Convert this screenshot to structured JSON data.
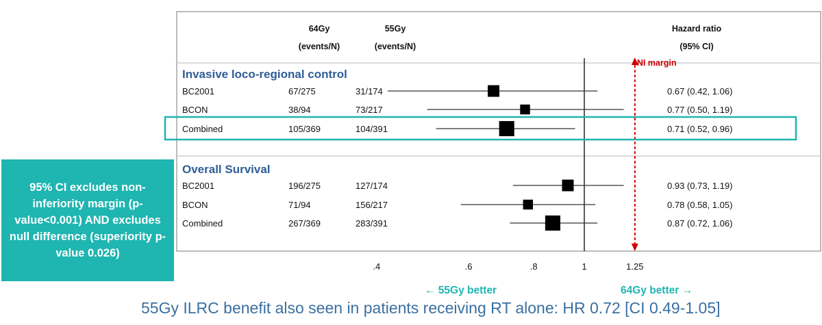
{
  "header": {
    "col1": [
      "64Gy",
      "(events/N)"
    ],
    "col2": [
      "55Gy",
      "(events/N)"
    ],
    "hr": [
      "Hazard ratio",
      "(95% CI)"
    ]
  },
  "ni_margin_label": "NI margin",
  "favour": {
    "left": "← 55Gy better",
    "right": "64Gy better →"
  },
  "callout": "95% CI excludes non-inferiority margin (p-value<0.001) AND excludes null difference (superiority p-value 0.026)",
  "caption": "55Gy ILRC benefit also seen in patients receiving RT alone: HR 0.72 [CI 0.49-1.05]",
  "colors": {
    "title": "#2e5d97",
    "highlight": "#1fb5b0",
    "ni": "#cc0000",
    "marker": "#000000"
  },
  "chart_data": {
    "type": "forest",
    "x_scale": "log",
    "xlim": [
      0.36,
      1.4
    ],
    "x_ticks": [
      0.4,
      0.6,
      0.8,
      1,
      1.25
    ],
    "x_tick_labels": [
      ".4",
      ".6",
      ".8",
      "1",
      "1.25"
    ],
    "null_line": 1,
    "ni_margin": 1.25,
    "groups": [
      {
        "title": "Invasive loco-regional control",
        "rows": [
          {
            "label": "BC2001",
            "a": "67/275",
            "b": "31/174",
            "hr": 0.67,
            "lo": 0.42,
            "hi": 1.06,
            "text": "0.67 (0.42, 1.06)",
            "size": 1
          },
          {
            "label": "BCON",
            "a": "38/94",
            "b": "73/217",
            "hr": 0.77,
            "lo": 0.5,
            "hi": 1.19,
            "text": "0.77 (0.50, 1.19)",
            "size": 0.85,
            "highlight": false
          },
          {
            "label": "Combined",
            "a": "105/369",
            "b": "104/391",
            "hr": 0.71,
            "lo": 0.52,
            "hi": 0.96,
            "text": "0.71 (0.52, 0.96)",
            "size": 1.3,
            "highlight": true
          }
        ]
      },
      {
        "title": "Overall Survival",
        "rows": [
          {
            "label": "BC2001",
            "a": "196/275",
            "b": "127/174",
            "hr": 0.93,
            "lo": 0.73,
            "hi": 1.19,
            "text": "0.93 (0.73, 1.19)",
            "size": 1
          },
          {
            "label": "BCON",
            "a": "71/94",
            "b": "156/217",
            "hr": 0.78,
            "lo": 0.58,
            "hi": 1.05,
            "text": "0.78 (0.58, 1.05)",
            "size": 0.85
          },
          {
            "label": "Combined",
            "a": "267/369",
            "b": "283/391",
            "hr": 0.87,
            "lo": 0.72,
            "hi": 1.06,
            "text": "0.87 (0.72, 1.06)",
            "size": 1.3
          }
        ]
      }
    ]
  }
}
